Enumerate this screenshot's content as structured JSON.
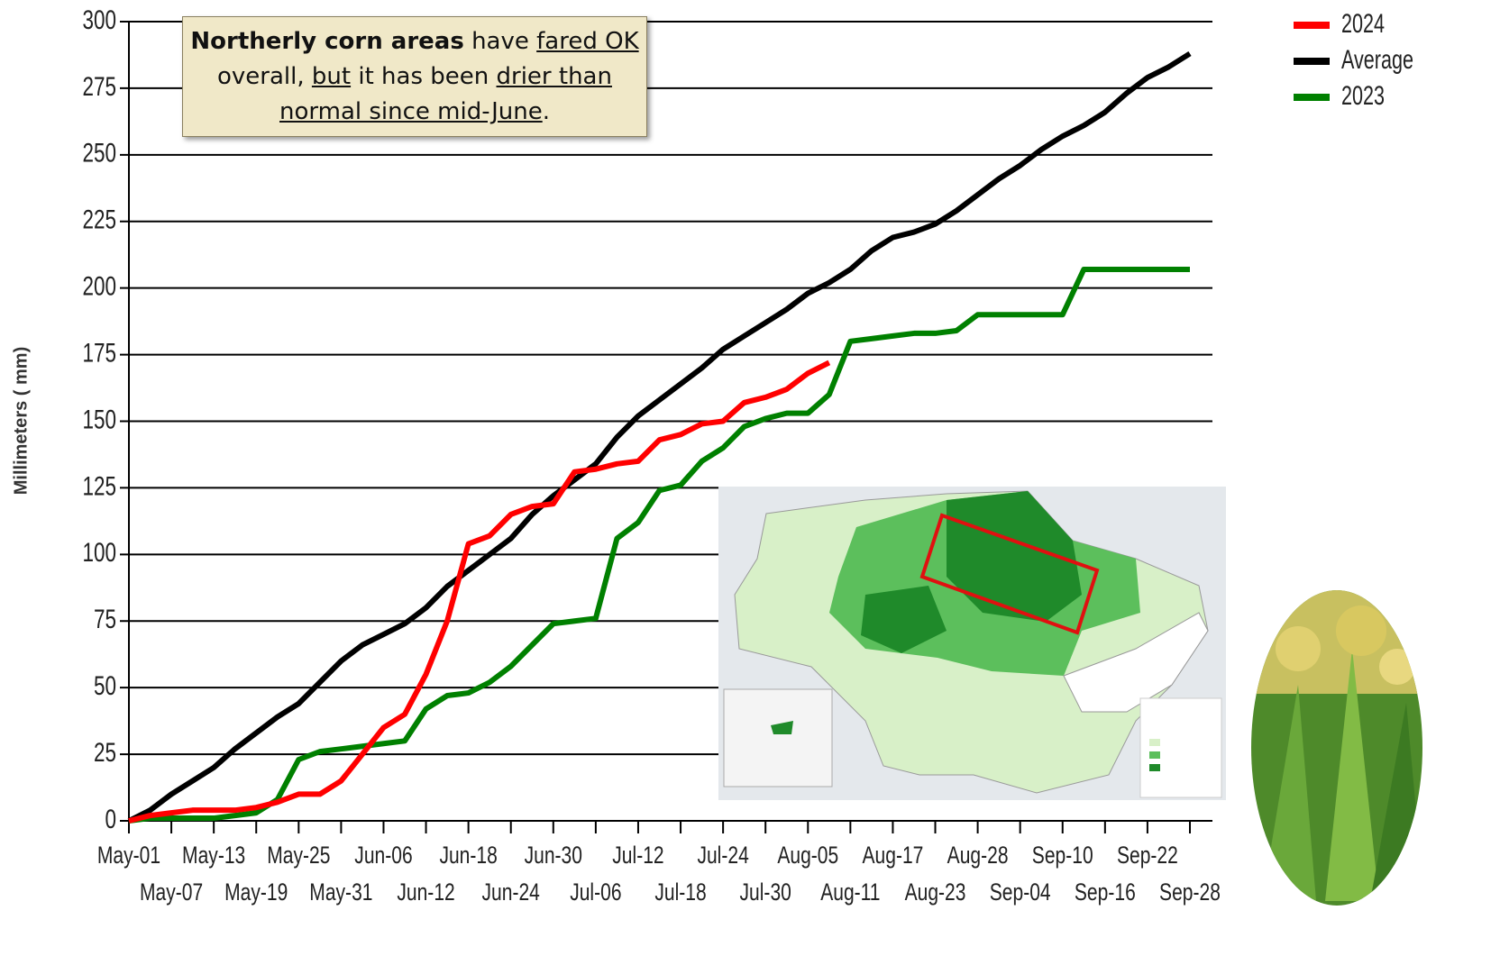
{
  "chart_data": {
    "type": "line",
    "y_label": "Millimeters ( mm)",
    "annotation": [
      {
        "text": "Northerly corn areas",
        "bold": true,
        "underline": false
      },
      {
        "text": "have",
        "bold": false,
        "underline": false
      },
      {
        "text": "fared OK",
        "bold": false,
        "underline": true
      },
      {
        "text": "overall,",
        "bold": false,
        "underline": false
      },
      {
        "text": "but",
        "bold": false,
        "underline": true
      },
      {
        "text": "it has been",
        "bold": false,
        "underline": false
      },
      {
        "text": "drier than normal since mid-June",
        "bold": false,
        "underline": true
      },
      {
        "text": ".",
        "bold": false,
        "underline": false
      }
    ],
    "categories": [
      "May-01",
      null,
      "May-07",
      null,
      "May-13",
      null,
      "May-19",
      null,
      "May-25",
      null,
      "May-31",
      null,
      "Jun-06",
      null,
      "Jun-12",
      null,
      "Jun-18",
      null,
      "Jun-24",
      null,
      "Jun-30",
      null,
      "Jul-06",
      null,
      "Jul-12",
      null,
      "Jul-18",
      null,
      "Jul-24",
      null,
      "Jul-30",
      null,
      "Aug-05",
      null,
      "Aug-11",
      null,
      "Aug-17",
      null,
      "Aug-23",
      null,
      "Aug-28",
      null,
      "Sep-04",
      null,
      "Sep-10",
      null,
      "Sep-16",
      null,
      "Sep-22",
      null,
      "Sep-28"
    ],
    "series": [
      {
        "name": "2024",
        "color": "#ff0000",
        "values": [
          0,
          2,
          3,
          4,
          4,
          4,
          5,
          7,
          10,
          10,
          15,
          25,
          35,
          40,
          55,
          75,
          104,
          107,
          115,
          118,
          119,
          131,
          132,
          134,
          135,
          143,
          145,
          149,
          150,
          157,
          159,
          162,
          168,
          172,
          null,
          null,
          null,
          null,
          null,
          null,
          null,
          null,
          null,
          null,
          null,
          null,
          null,
          null,
          null,
          null,
          null
        ]
      },
      {
        "name": "Average",
        "color": "#000000",
        "values": [
          0,
          4,
          10,
          15,
          20,
          27,
          33,
          39,
          44,
          52,
          60,
          66,
          70,
          74,
          80,
          88,
          94,
          100,
          106,
          115,
          122,
          128,
          134,
          144,
          152,
          158,
          164,
          170,
          177,
          182,
          187,
          192,
          198,
          202,
          207,
          214,
          219,
          221,
          224,
          229,
          235,
          241,
          246,
          252,
          257,
          261,
          266,
          273,
          279,
          283,
          288
        ]
      },
      {
        "name": "2023",
        "color": "#008000",
        "values": [
          0,
          1,
          1,
          1,
          1,
          2,
          3,
          8,
          23,
          26,
          27,
          28,
          29,
          30,
          42,
          47,
          48,
          52,
          58,
          66,
          74,
          75,
          76,
          106,
          112,
          124,
          126,
          135,
          140,
          148,
          151,
          153,
          153,
          160,
          180,
          181,
          182,
          183,
          183,
          184,
          190,
          190,
          190,
          190,
          190,
          207,
          207,
          207,
          207,
          207,
          207
        ]
      }
    ],
    "ylim": [
      0,
      300
    ],
    "yticks": [
      0,
      25,
      50,
      75,
      100,
      125,
      150,
      175,
      200,
      225,
      250,
      275,
      300
    ],
    "grid": true,
    "legend": "top-right"
  }
}
